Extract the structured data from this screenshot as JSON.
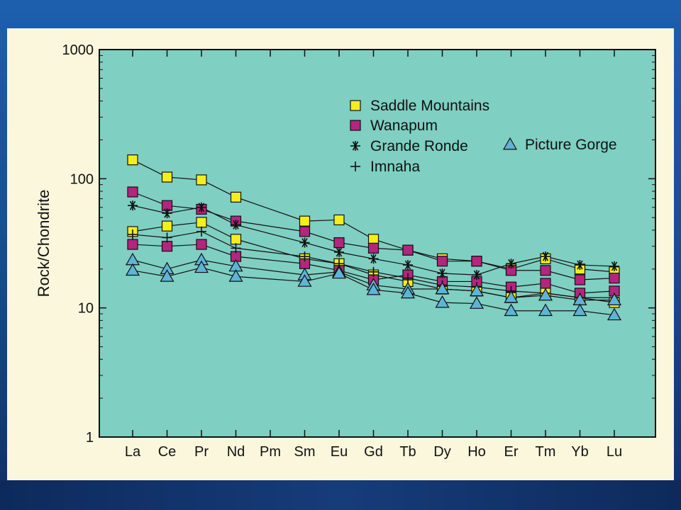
{
  "chart_data": {
    "type": "line",
    "y_scale": "log",
    "ylim": [
      1,
      1000
    ],
    "ylabel": "Rock/Chondrite",
    "y_ticks": [
      1,
      10,
      100,
      1000
    ],
    "y_tick_labels": [
      "1",
      "10",
      "100",
      "1000"
    ],
    "categories": [
      "La",
      "Ce",
      "Pr",
      "Nd",
      "Pm",
      "Sm",
      "Eu",
      "Gd",
      "Tb",
      "Dy",
      "Ho",
      "Er",
      "Tm",
      "Yb",
      "Lu"
    ],
    "grid": false,
    "legend_position": "top-right",
    "legend": [
      {
        "label": "Saddle Mountains",
        "marker": "square",
        "color": "#f4ee1c"
      },
      {
        "label": "Wanapum",
        "marker": "square",
        "color": "#b5247e"
      },
      {
        "label": "Grande Ronde",
        "marker": "asterisk",
        "color": "#111111"
      },
      {
        "label": "Imnaha",
        "marker": "plus",
        "color": "#111111"
      },
      {
        "label": "Picture Gorge",
        "marker": "triangle",
        "color": "#5fb3d6"
      }
    ],
    "series": [
      {
        "name": "Saddle Mountains",
        "marker": "square",
        "color": "#f4ee1c",
        "values": [
          140,
          103,
          98,
          72,
          null,
          47,
          48,
          34,
          28,
          24,
          23,
          20,
          24,
          20,
          19
        ]
      },
      {
        "name": "Saddle Mountains",
        "marker": "square",
        "color": "#f4ee1c",
        "values": [
          39,
          43,
          46,
          34,
          null,
          24,
          22,
          18,
          16,
          14,
          13.5,
          12,
          13,
          12,
          11
        ]
      },
      {
        "name": "Wanapum",
        "marker": "square",
        "color": "#b5247e",
        "values": [
          79,
          62,
          58,
          47,
          null,
          39,
          32,
          29,
          28,
          23,
          23,
          19.5,
          19.5,
          16.5,
          17
        ]
      },
      {
        "name": "Wanapum",
        "marker": "square",
        "color": "#b5247e",
        "values": [
          31,
          30,
          31,
          25,
          null,
          22,
          19.5,
          16.5,
          18,
          16,
          16,
          14.5,
          15.5,
          13,
          13.5
        ]
      },
      {
        "name": "Grande Ronde",
        "marker": "asterisk",
        "color": "#111111",
        "values": [
          62,
          54,
          60,
          44,
          null,
          32,
          27,
          24,
          21.5,
          18.5,
          18,
          22,
          25,
          21.5,
          21
        ]
      },
      {
        "name": "Imnaha",
        "marker": "plus",
        "color": "#111111",
        "values": [
          37,
          35,
          39,
          29,
          null,
          25,
          22,
          19,
          17,
          15,
          14.5,
          13.5,
          13,
          12,
          12
        ]
      },
      {
        "name": "Picture Gorge",
        "marker": "triangle",
        "color": "#5fb3d6",
        "values": [
          23.5,
          20,
          23.5,
          21,
          null,
          18,
          19,
          15,
          14,
          14,
          13.5,
          12,
          12.5,
          11.5,
          11.5
        ]
      },
      {
        "name": "Picture Gorge",
        "marker": "triangle",
        "color": "#5fb3d6",
        "values": [
          19.5,
          17.5,
          20.5,
          17.5,
          null,
          16,
          18.5,
          13.8,
          13,
          11,
          10.8,
          9.5,
          9.5,
          9.5,
          8.8
        ]
      }
    ]
  },
  "colors": {
    "frame_background": "#fbf7dd",
    "plot_background": "#7fcfc2",
    "slide_background": "#1d5fae"
  }
}
